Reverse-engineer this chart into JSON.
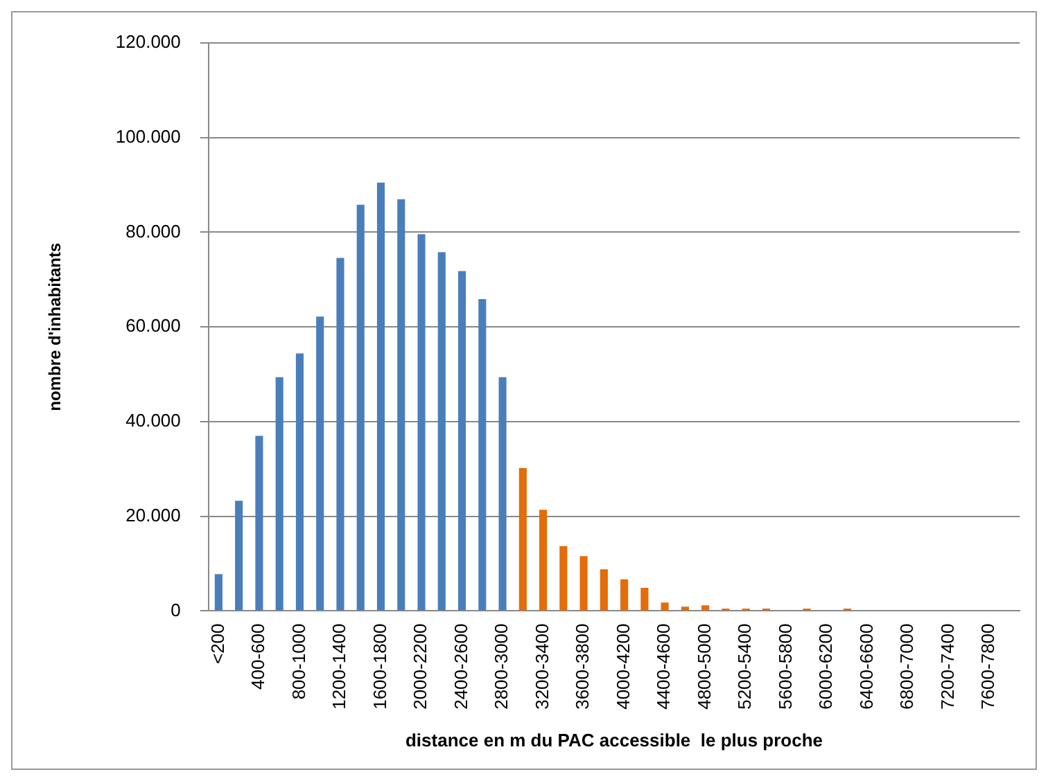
{
  "chart_data": {
    "type": "bar",
    "xlabel": "distance en m du PAC accessible  le plus proche",
    "ylabel": "nombre d'inhabitants",
    "categories": [
      "<200",
      null,
      "400-600",
      null,
      "800-1000",
      null,
      "1200-1400",
      null,
      "1600-1800",
      null,
      "2000-2200",
      null,
      "2400-2600",
      null,
      "2800-3000",
      null,
      "3200-3400",
      null,
      "3600-3800",
      null,
      "4000-4200",
      null,
      "4400-4600",
      null,
      "4800-5000",
      null,
      "5200-5400",
      null,
      "5600-5800",
      null,
      "6000-6200",
      null,
      "6400-6600",
      null,
      "6800-7000",
      null,
      "7200-7400",
      null,
      "7600-7800",
      null
    ],
    "values": [
      7800,
      23300,
      37000,
      49400,
      54400,
      62200,
      74600,
      85800,
      90500,
      87000,
      79600,
      75800,
      71800,
      65900,
      49400,
      30200,
      21400,
      13700,
      11600,
      8800,
      6700,
      4900,
      1800,
      900,
      1200,
      500,
      500,
      500,
      0,
      500,
      0,
      500,
      0,
      0,
      0,
      0,
      0,
      0,
      0,
      0
    ],
    "colors": [
      "#4a7ebb",
      "#4a7ebb",
      "#4a7ebb",
      "#4a7ebb",
      "#4a7ebb",
      "#4a7ebb",
      "#4a7ebb",
      "#4a7ebb",
      "#4a7ebb",
      "#4a7ebb",
      "#4a7ebb",
      "#4a7ebb",
      "#4a7ebb",
      "#4a7ebb",
      "#4a7ebb",
      "#e46c0a",
      "#e46c0a",
      "#e46c0a",
      "#e46c0a",
      "#e46c0a",
      "#e46c0a",
      "#e46c0a",
      "#e46c0a",
      "#e46c0a",
      "#e46c0a",
      "#e46c0a",
      "#e46c0a",
      "#e46c0a",
      "#e46c0a",
      "#e46c0a",
      "#e46c0a",
      "#e46c0a",
      "#e46c0a",
      "#e46c0a",
      "#e46c0a",
      "#e46c0a",
      "#e46c0a",
      "#e46c0a",
      "#e46c0a",
      "#e46c0a"
    ],
    "ylim": [
      0,
      120000
    ],
    "yticks": [
      0,
      {
        "value": 20000,
        "label": "20.000"
      },
      {
        "value": 40000,
        "label": "40.000"
      },
      {
        "value": 60000,
        "label": "60.000"
      },
      {
        "value": 80000,
        "label": "80.000"
      },
      {
        "value": 100000,
        "label": "100.000"
      },
      {
        "value": 120000,
        "label": "120.000"
      }
    ],
    "grid": "y",
    "legend": false
  }
}
